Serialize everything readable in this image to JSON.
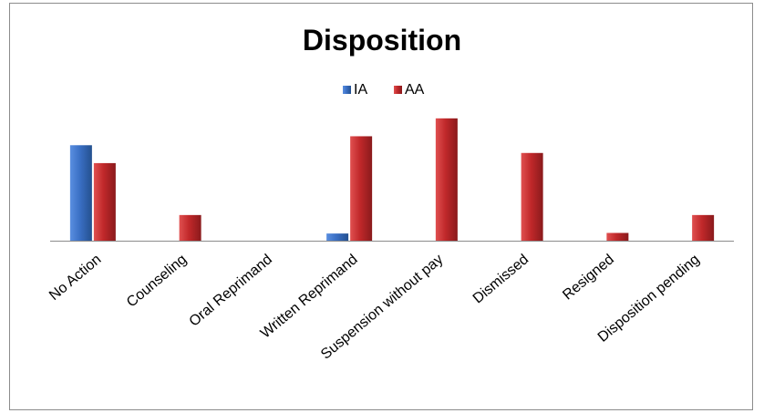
{
  "chart_data": {
    "type": "bar",
    "title": "Disposition",
    "categories": [
      "No Action",
      "Counseling",
      "Oral Reprimand",
      "Written Reprimand",
      "Suspension without pay",
      "Dismissed",
      "Resigned",
      "Disposition pending"
    ],
    "series": [
      {
        "name": "IA",
        "values": [
          16,
          0,
          0,
          1.2,
          0,
          0,
          0,
          0
        ]
      },
      {
        "name": "AA",
        "values": [
          13,
          4.3,
          0,
          17.5,
          20.5,
          14.7,
          1.3,
          4.3
        ]
      }
    ],
    "xlabel": "",
    "ylabel": "",
    "ylim": [
      0,
      22
    ],
    "grid": false,
    "legend": "top-center",
    "colors": {
      "IA": "#3a6fc4",
      "AA": "#c0282a"
    }
  }
}
